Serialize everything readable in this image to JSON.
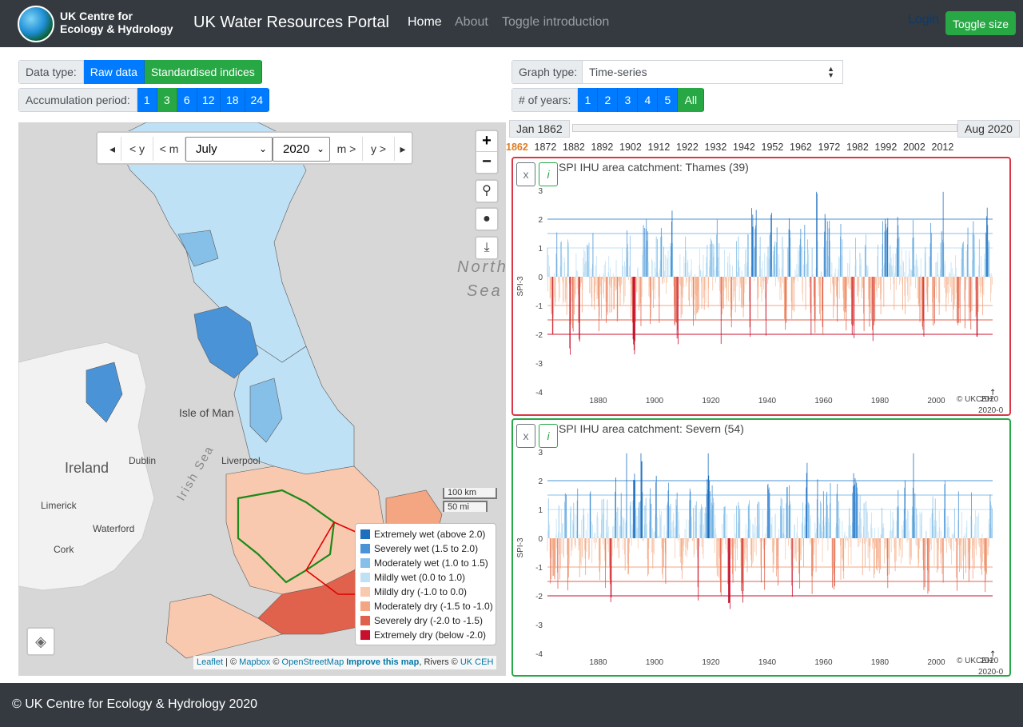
{
  "navbar": {
    "logo_line1": "UK Centre for",
    "logo_line2": "Ecology & Hydrology",
    "title": "UK Water Resources Portal",
    "links": [
      "Home",
      "About",
      "Toggle introduction"
    ],
    "login": "Login",
    "toggle_size": "Toggle size"
  },
  "controls": {
    "data_type_label": "Data type:",
    "data_types": [
      "Raw data",
      "Standardised indices"
    ],
    "data_type_selected": "Standardised indices",
    "accum_label": "Accumulation period:",
    "accum_options": [
      "1",
      "3",
      "6",
      "12",
      "18",
      "24"
    ],
    "accum_selected": "3",
    "graph_type_label": "Graph type:",
    "graph_type_value": "Time-series",
    "years_label": "# of years:",
    "years_options": [
      "1",
      "2",
      "3",
      "4",
      "5",
      "All"
    ],
    "years_selected": "All"
  },
  "map": {
    "nav": {
      "prev_year": "< y",
      "prev_month": "< m",
      "month": "July",
      "year": "2020",
      "next_month": "m >",
      "next_year": "y >"
    },
    "labels": {
      "ireland": "Ireland",
      "dublin": "Dublin",
      "isle_of_man": "Isle of Man",
      "irish_sea": "Irish Sea",
      "liverpool": "Liverpool",
      "limerick": "Limerick",
      "waterford": "Waterford",
      "cork": "Cork",
      "north_sea_1": "North",
      "north_sea_2": "Sea"
    },
    "scale_km": "100 km",
    "scale_mi": "50 mi",
    "legend": [
      {
        "label": "Extremely wet (above 2.0)",
        "color": "#1f6fbf"
      },
      {
        "label": "Severely wet (1.5 to 2.0)",
        "color": "#4a93d6"
      },
      {
        "label": "Moderately wet (1.0 to 1.5)",
        "color": "#86bfe8"
      },
      {
        "label": "Mildly wet (0.0 to 1.0)",
        "color": "#bfe1f5"
      },
      {
        "label": "Mildly dry (-1.0 to 0.0)",
        "color": "#f8c9ae"
      },
      {
        "label": "Moderately dry (-1.5 to -1.0)",
        "color": "#f4a582"
      },
      {
        "label": "Severely dry (-2.0 to -1.5)",
        "color": "#e0624c"
      },
      {
        "label": "Extremely dry (below -2.0)",
        "color": "#c8102e"
      }
    ],
    "attribution": {
      "leaflet": "Leaflet",
      "sep1": " | © ",
      "mapbox": "Mapbox",
      "sep2": " © ",
      "osm": "OpenStreetMap",
      "improve": "Improve this map",
      "sep3": ", Rivers © ",
      "ukceh": "UK CEH"
    }
  },
  "timeline": {
    "start": "Jan 1862",
    "end": "Aug 2020",
    "years": [
      "1862",
      "1872",
      "1882",
      "1892",
      "1902",
      "1912",
      "1922",
      "1932",
      "1942",
      "1952",
      "1962",
      "1972",
      "1982",
      "1992",
      "2002",
      "2012"
    ]
  },
  "panels": [
    {
      "close": "x",
      "info": "i",
      "title": "SPI IHU area catchment: Thames (39)",
      "border": "#dc3545"
    },
    {
      "close": "x",
      "info": "i",
      "title": "SPI IHU area catchment: Severn (54)",
      "border": "#28a745"
    }
  ],
  "chart_data": [
    {
      "type": "bar",
      "title": "SPI IHU area catchment: Thames (39)",
      "ylabel": "SPI-3",
      "ylim": [
        -4,
        3
      ],
      "yticks": [
        3,
        2,
        1,
        0,
        -1,
        -2,
        -3,
        -4
      ],
      "xticks": [
        1880,
        1900,
        1920,
        1940,
        1960,
        1980,
        2000
      ],
      "xrange": [
        1862,
        2020
      ],
      "credit": "© UKCEH",
      "end_label": "2020",
      "end_label2": "2020-0"
    },
    {
      "type": "bar",
      "title": "SPI IHU area catchment: Severn (54)",
      "ylabel": "SPI-3",
      "ylim": [
        -4,
        3
      ],
      "yticks": [
        3,
        2,
        1,
        0,
        -1,
        -2,
        -3,
        -4
      ],
      "xticks": [
        1880,
        1900,
        1920,
        1940,
        1960,
        1980,
        2000
      ],
      "xrange": [
        1862,
        2020
      ],
      "credit": "© UKCEH",
      "end_label": "2020",
      "end_label2": "2020-0"
    }
  ],
  "footer": "© UK Centre for Ecology & Hydrology 2020"
}
